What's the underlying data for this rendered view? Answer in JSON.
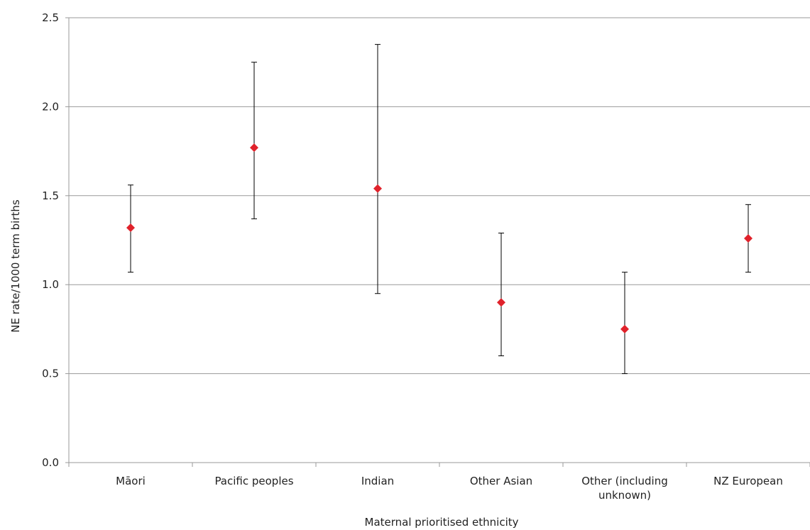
{
  "chart_data": {
    "type": "scatter",
    "title": "",
    "xlabel": "Maternal prioritised ethnicity",
    "ylabel": "NE rate/1000 term births",
    "categories": [
      [
        "Māori"
      ],
      [
        "Pacific peoples"
      ],
      [
        "Indian"
      ],
      [
        "Other Asian"
      ],
      [
        "Other (including",
        "unknown)"
      ],
      [
        "NZ European"
      ]
    ],
    "values": [
      1.32,
      1.77,
      1.54,
      0.9,
      0.75,
      1.26
    ],
    "error_low": [
      1.07,
      1.37,
      0.95,
      0.6,
      0.5,
      1.07
    ],
    "error_high": [
      1.56,
      2.25,
      2.35,
      1.29,
      1.07,
      1.45
    ],
    "ylim": [
      0,
      2.5
    ],
    "yticks": [
      "0.0",
      "0.5",
      "1.0",
      "1.5",
      "2.0",
      "2.5"
    ],
    "grid": true,
    "marker": "diamond",
    "marker_color": "#e0222b",
    "error_bar_color": "#000000",
    "grid_color": "#999999"
  }
}
